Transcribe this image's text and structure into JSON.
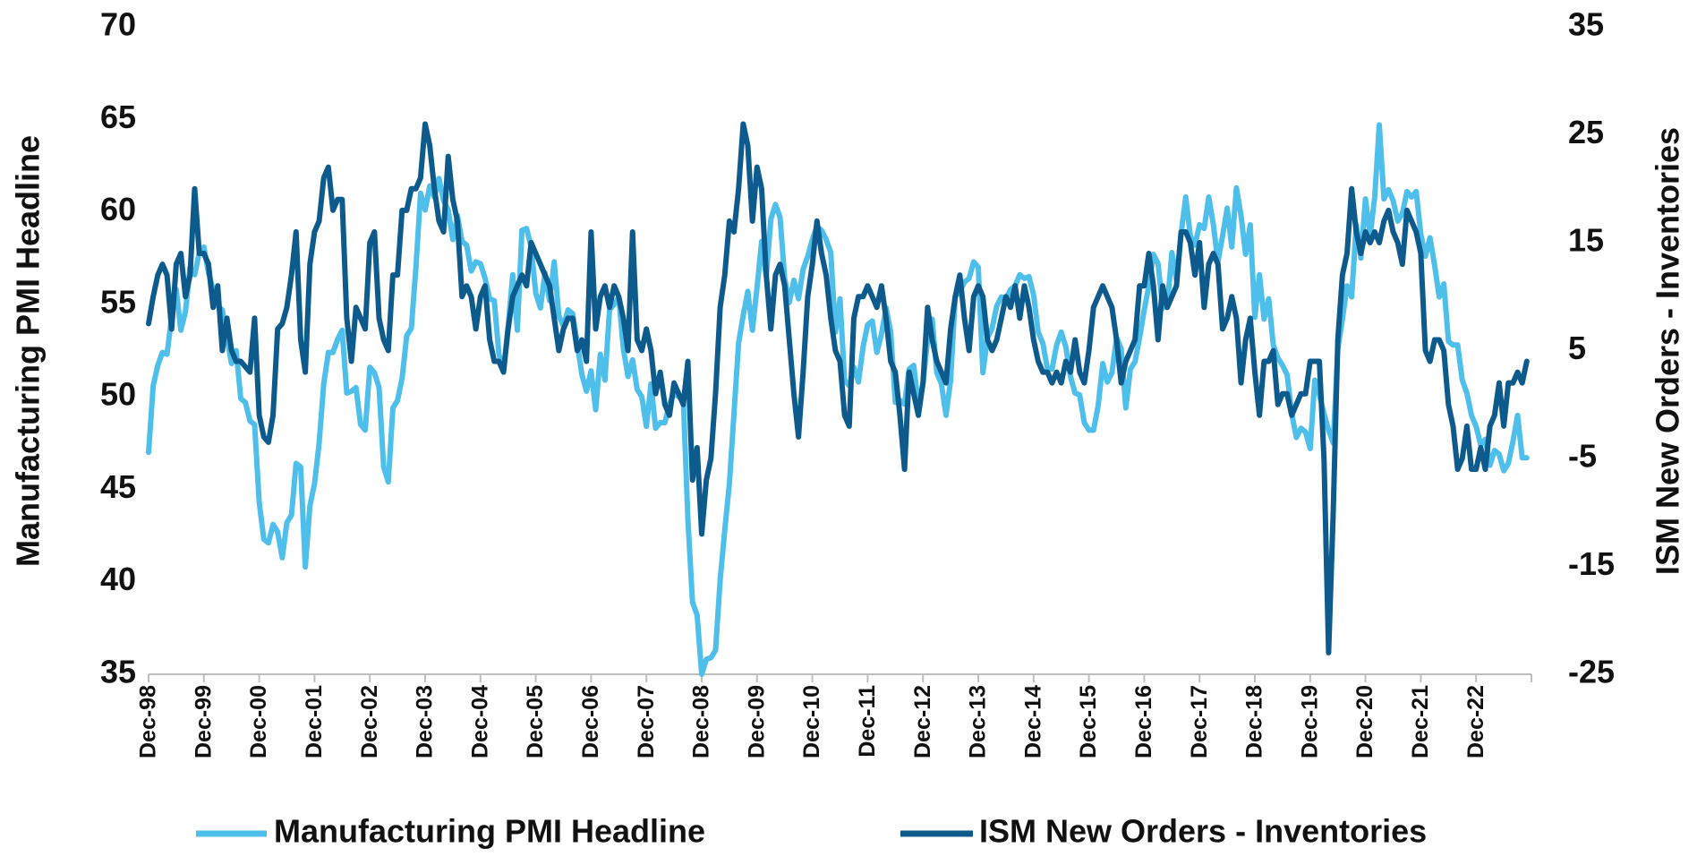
{
  "chart_data": {
    "type": "line",
    "ylabel": "Manufacturing PMI Headline",
    "y2label": "ISM New Orders - Inventories",
    "ylim": [
      35,
      70
    ],
    "yticks": [
      35,
      40,
      45,
      50,
      55,
      60,
      65,
      70
    ],
    "y2lim": [
      -25,
      35
    ],
    "y2ticks": [
      -25,
      -15,
      -5,
      5,
      15,
      25,
      35
    ],
    "grid": false,
    "legend": "bottom",
    "categories": [
      "Dec-98",
      null,
      null,
      null,
      null,
      null,
      null,
      null,
      null,
      null,
      null,
      null,
      "Dec-99",
      null,
      null,
      null,
      null,
      null,
      null,
      null,
      null,
      null,
      null,
      null,
      "Dec-00",
      null,
      null,
      null,
      null,
      null,
      null,
      null,
      null,
      null,
      null,
      null,
      "Dec-01",
      null,
      null,
      null,
      null,
      null,
      null,
      null,
      null,
      null,
      null,
      null,
      "Dec-02",
      null,
      null,
      null,
      null,
      null,
      null,
      null,
      null,
      null,
      null,
      null,
      "Dec-03",
      null,
      null,
      null,
      null,
      null,
      null,
      null,
      null,
      null,
      null,
      null,
      "Dec-04",
      null,
      null,
      null,
      null,
      null,
      null,
      null,
      null,
      null,
      null,
      null,
      "Dec-05",
      null,
      null,
      null,
      null,
      null,
      null,
      null,
      null,
      null,
      null,
      null,
      "Dec-06",
      null,
      null,
      null,
      null,
      null,
      null,
      null,
      null,
      null,
      null,
      null,
      "Dec-07",
      null,
      null,
      null,
      null,
      null,
      null,
      null,
      null,
      null,
      null,
      null,
      "Dec-08",
      null,
      null,
      null,
      null,
      null,
      null,
      null,
      null,
      null,
      null,
      null,
      "Dec-09",
      null,
      null,
      null,
      null,
      null,
      null,
      null,
      null,
      null,
      null,
      null,
      "Dec-10",
      null,
      null,
      null,
      null,
      null,
      null,
      null,
      null,
      null,
      null,
      null,
      "Dec-11",
      null,
      null,
      null,
      null,
      null,
      null,
      null,
      null,
      null,
      null,
      null,
      "Dec-12",
      null,
      null,
      null,
      null,
      null,
      null,
      null,
      null,
      null,
      null,
      null,
      "Dec-13",
      null,
      null,
      null,
      null,
      null,
      null,
      null,
      null,
      null,
      null,
      null,
      "Dec-14",
      null,
      null,
      null,
      null,
      null,
      null,
      null,
      null,
      null,
      null,
      null,
      "Dec-15",
      null,
      null,
      null,
      null,
      null,
      null,
      null,
      null,
      null,
      null,
      null,
      "Dec-16",
      null,
      null,
      null,
      null,
      null,
      null,
      null,
      null,
      null,
      null,
      null,
      "Dec-17",
      null,
      null,
      null,
      null,
      null,
      null,
      null,
      null,
      null,
      null,
      null,
      "Dec-18",
      null,
      null,
      null,
      null,
      null,
      null,
      null,
      null,
      null,
      null,
      null,
      "Dec-19",
      null,
      null,
      null,
      null,
      null,
      null,
      null,
      null,
      null,
      null,
      null,
      "Dec-20",
      null,
      null,
      null,
      null,
      null,
      null,
      null,
      null,
      null,
      null,
      null,
      "Dec-21",
      null,
      null,
      null,
      null,
      null,
      null,
      null,
      null,
      null,
      null,
      null,
      "Dec-22",
      null,
      null,
      null,
      null,
      null,
      null,
      null,
      null,
      null,
      null,
      null
    ],
    "series": [
      {
        "name": "Manufacturing PMI Headline",
        "color": "#4dbfea",
        "axis": "y",
        "values": [
          47.0,
          50.6,
          51.7,
          52.4,
          52.3,
          54.3,
          55.8,
          53.6,
          54.6,
          57.0,
          56.6,
          57.8,
          58.1,
          56.7,
          55.8,
          54.9,
          54.7,
          53.2,
          51.8,
          52.5,
          49.9,
          49.7,
          48.7,
          48.5,
          44.3,
          42.3,
          42.1,
          43.1,
          42.7,
          41.3,
          43.2,
          43.6,
          46.4,
          46.2,
          40.8,
          44.1,
          45.3,
          47.5,
          50.7,
          52.4,
          52.4,
          53.1,
          53.6,
          50.2,
          50.3,
          50.5,
          48.5,
          48.2,
          51.6,
          51.3,
          50.5,
          46.2,
          45.4,
          49.4,
          49.8,
          51.0,
          53.3,
          53.7,
          57.0,
          61.0,
          60.1,
          61.4,
          60.8,
          61.8,
          60.6,
          60.1,
          58.5,
          59.8,
          58.4,
          58.2,
          56.8,
          57.3,
          57.2,
          56.4,
          55.3,
          55.2,
          52.3,
          51.4,
          53.8,
          56.6,
          53.6,
          59.0,
          59.1,
          58.1,
          55.6,
          54.8,
          56.7,
          55.2,
          57.3,
          54.4,
          53.8,
          54.7,
          54.5,
          52.9,
          51.2,
          50.3,
          51.4,
          49.3,
          52.3,
          50.9,
          54.7,
          55.0,
          55.4,
          52.6,
          51.1,
          52.0,
          50.4,
          50.0,
          48.4,
          50.7,
          48.3,
          48.6,
          48.6,
          49.6,
          50.2,
          50.0,
          49.9,
          43.4,
          38.9,
          38.2,
          35.0,
          35.8,
          35.9,
          36.3,
          40.1,
          42.8,
          45.3,
          49.1,
          52.9,
          54.4,
          55.7,
          53.6,
          55.9,
          58.4,
          56.5,
          59.6,
          60.4,
          59.7,
          56.4,
          55.1,
          56.3,
          55.3,
          56.9,
          57.6,
          58.5,
          59.2,
          59.0,
          58.5,
          57.8,
          53.5,
          55.3,
          50.9,
          50.6,
          51.6,
          50.8,
          52.7,
          53.9,
          54.1,
          52.4,
          53.4,
          54.8,
          53.5,
          49.7,
          49.8,
          49.6,
          51.5,
          51.7,
          49.5,
          50.7,
          53.1,
          54.2,
          51.3,
          50.7,
          49.0,
          50.9,
          55.4,
          55.7,
          56.2,
          56.4,
          57.3,
          57.0,
          51.3,
          53.2,
          53.7,
          54.9,
          55.4,
          55.3,
          55.8,
          56.0,
          56.6,
          56.4,
          56.5,
          55.5,
          53.5,
          52.9,
          51.5,
          51.5,
          52.8,
          53.5,
          52.7,
          51.1,
          50.2,
          50.1,
          48.6,
          48.2,
          48.2,
          49.5,
          51.8,
          50.8,
          51.3,
          53.2,
          52.6,
          49.4,
          51.5,
          51.9,
          53.2,
          54.7,
          56.0,
          57.7,
          57.2,
          54.8,
          54.9,
          57.8,
          56.3,
          58.8,
          60.8,
          58.7,
          58.2,
          59.3,
          59.1,
          60.8,
          59.3,
          57.3,
          58.7,
          60.2,
          58.1,
          61.3,
          59.8,
          57.7,
          59.3,
          54.3,
          56.6,
          54.2,
          55.3,
          52.8,
          52.1,
          51.7,
          51.2,
          49.1,
          47.8,
          48.3,
          48.1,
          47.2,
          50.9,
          50.1,
          49.1,
          48.2,
          47.5,
          52.6,
          54.2,
          56.0,
          55.4,
          59.3,
          57.5,
          60.7,
          58.7,
          60.8,
          64.7,
          60.7,
          61.2,
          60.6,
          59.5,
          59.9,
          61.1,
          60.8,
          61.1,
          58.8,
          57.6,
          58.6,
          57.1,
          55.4,
          56.1,
          53.0,
          52.8,
          52.8,
          50.9,
          50.2,
          49.0,
          48.4,
          47.4,
          47.7,
          46.3,
          47.1,
          46.9,
          46.0,
          46.4,
          47.6,
          49.0,
          46.7,
          46.7
        ]
      },
      {
        "name": "ISM New Orders - Inventories",
        "color": "#0d5b8c",
        "axis": "y2",
        "values": [
          7.5,
          10,
          12,
          13,
          12,
          7,
          13,
          14,
          10,
          12,
          20,
          14,
          14,
          13,
          9,
          11,
          5,
          8,
          5,
          4,
          4,
          3.5,
          3,
          8,
          -1,
          -3,
          -3.5,
          -1,
          7,
          7.5,
          9,
          12,
          16,
          6,
          3,
          13,
          16,
          17,
          21,
          22,
          18,
          19,
          19,
          8,
          4,
          9,
          8,
          7,
          15,
          16,
          8,
          6,
          5,
          12,
          12,
          18,
          18,
          20,
          20,
          21,
          26,
          24,
          20,
          17,
          16,
          23,
          19,
          17,
          10,
          11,
          10,
          7,
          10,
          11,
          6,
          4,
          4,
          3,
          7,
          10,
          11,
          12,
          11,
          15,
          14,
          13,
          12,
          11,
          8,
          5,
          7,
          8,
          8,
          5,
          6,
          4,
          16,
          7,
          10,
          11,
          9,
          11,
          10,
          8,
          5,
          16,
          6,
          5,
          7,
          5,
          1,
          3,
          0,
          -1,
          2,
          1,
          0,
          4,
          -7,
          -4,
          -12,
          -7,
          -5,
          1,
          9,
          12,
          17,
          16,
          20,
          26,
          24,
          17,
          22,
          20,
          12,
          7,
          12,
          13,
          11,
          6,
          1,
          -3,
          3,
          10,
          13,
          17,
          14,
          12,
          8,
          5,
          4,
          -1,
          -2,
          8,
          10,
          10,
          11,
          10,
          9,
          11,
          8,
          4,
          3,
          -1,
          -6,
          3,
          1,
          -1,
          2,
          9,
          6,
          4,
          3,
          2,
          7,
          10,
          12,
          8,
          5,
          10,
          11,
          10,
          6,
          5,
          6,
          8,
          10,
          9,
          11,
          8,
          11,
          9,
          6,
          4,
          3,
          3,
          2,
          3,
          2,
          4,
          3,
          6,
          3,
          2,
          5,
          9,
          10,
          11,
          10,
          9,
          6,
          2,
          4,
          5,
          6,
          11,
          11,
          14,
          11,
          6,
          11,
          9,
          10,
          11,
          16,
          16,
          15,
          12,
          15,
          9,
          13,
          14,
          13,
          7,
          8,
          10,
          8,
          2,
          6,
          8,
          3,
          -1,
          4,
          4,
          5,
          0,
          1,
          1,
          -1,
          0,
          1,
          1,
          4,
          4,
          4,
          -5,
          -23,
          -10,
          6,
          12,
          14,
          20,
          16,
          14,
          16,
          15,
          16,
          15,
          17,
          18,
          16,
          15,
          13,
          18,
          17,
          16,
          14,
          5,
          4,
          6,
          6,
          5,
          0,
          -2,
          -6,
          -5,
          -2,
          -6,
          -6,
          -4,
          -6,
          -2,
          -1,
          2,
          -2,
          2,
          2,
          3,
          2,
          4
        ]
      }
    ]
  }
}
